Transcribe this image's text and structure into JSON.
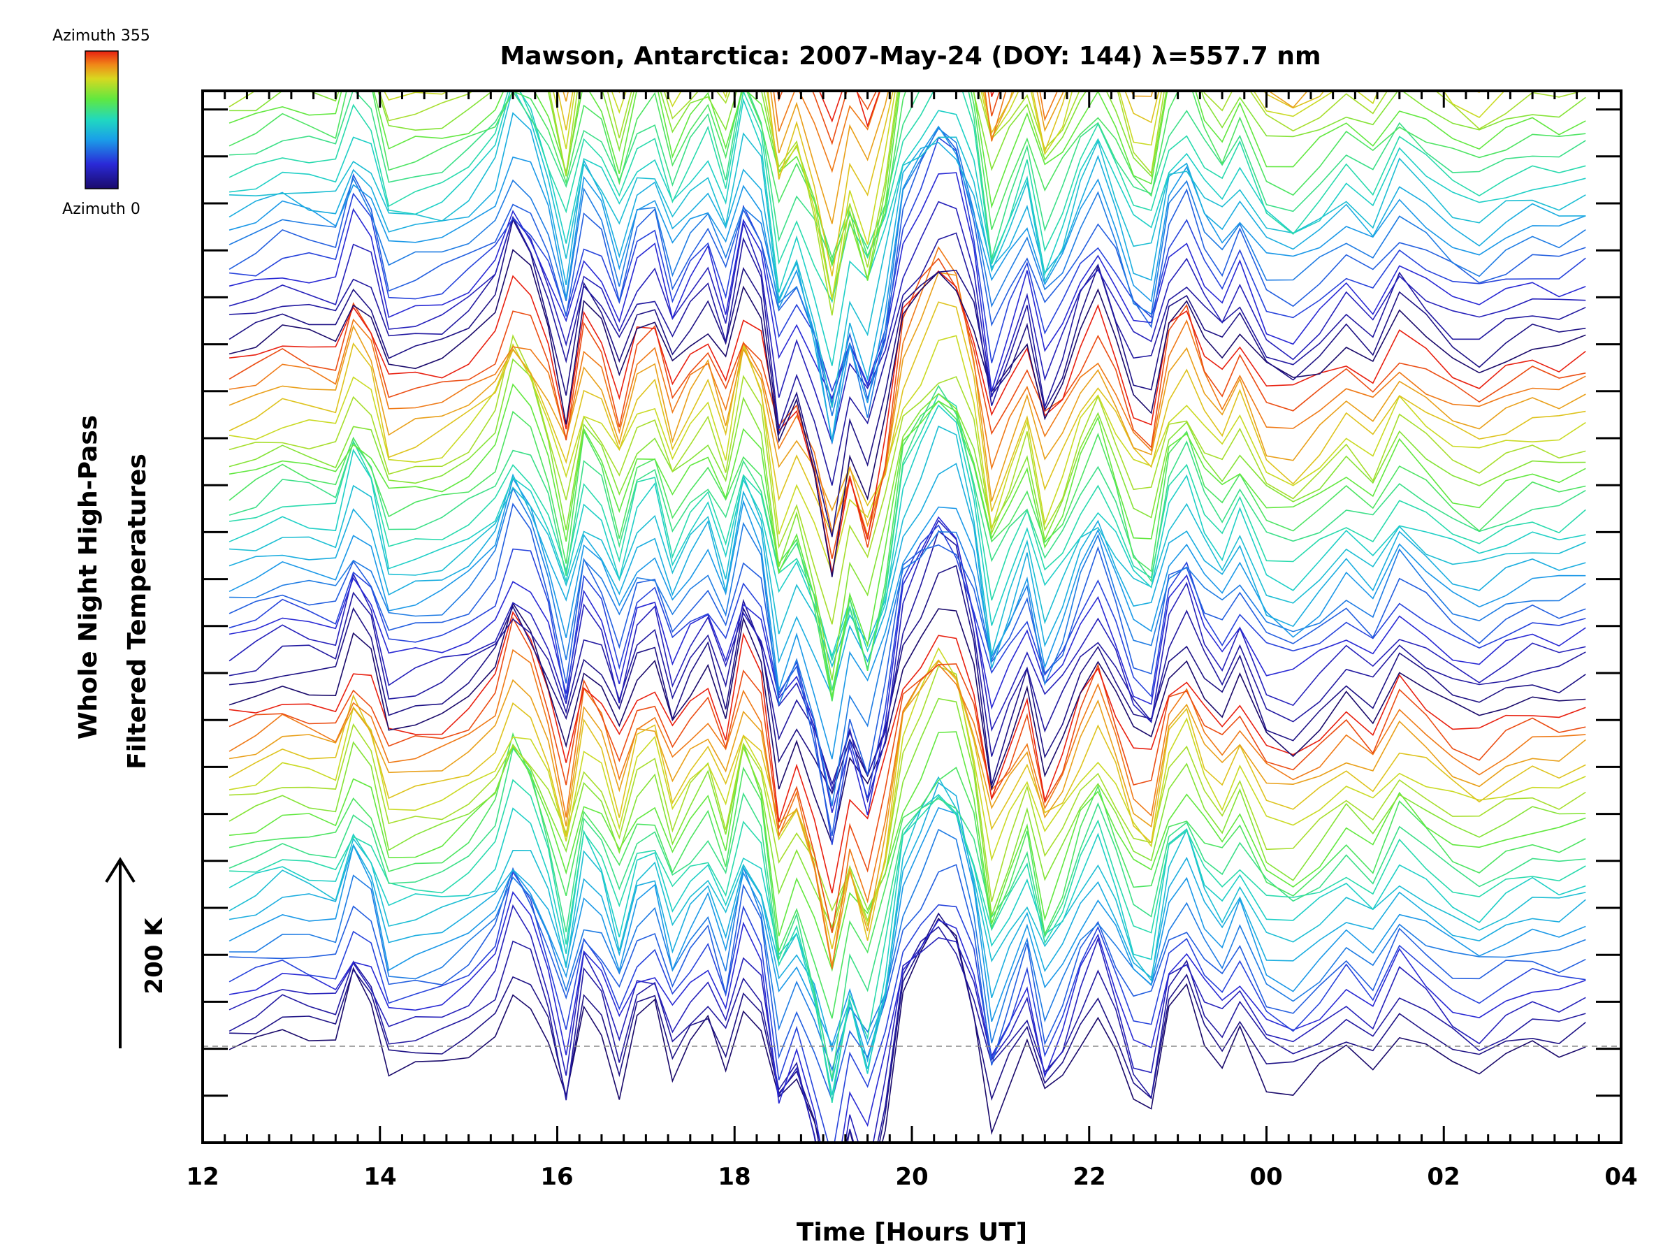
{
  "chart_data": {
    "type": "line",
    "title": "Mawson, Antarctica: 2007-May-24 (DOY: 144) λ=557.7 nm",
    "xlabel": "Time [Hours UT]",
    "ylabel_line1": "Whole Night High-Pass",
    "ylabel_line2": "Filtered Temperatures",
    "scale_label": "200 K",
    "x_range_hours_since_12UT": [
      0,
      16
    ],
    "x_ticks": [
      "12",
      "14",
      "16",
      "18",
      "20",
      "22",
      "00",
      "02",
      "04"
    ],
    "colorbar": {
      "top_label": "Azimuth  355",
      "bottom_label": "Azimuth  0",
      "range": [
        0,
        355
      ]
    },
    "series_count": 72,
    "series_offset_between_azimuths": "staggered upward, ~1/3 of 200 K per step",
    "sample_times_hours_since_12UT": [
      0.3,
      0.6,
      0.9,
      1.2,
      1.5,
      1.7,
      1.9,
      2.1,
      2.4,
      2.7,
      3.0,
      3.3,
      3.5,
      3.7,
      3.9,
      4.1,
      4.3,
      4.5,
      4.7,
      4.9,
      5.1,
      5.3,
      5.5,
      5.7,
      5.9,
      6.1,
      6.3,
      6.5,
      6.7,
      6.9,
      7.1,
      7.3,
      7.5,
      7.7,
      7.9,
      8.1,
      8.3,
      8.5,
      8.7,
      8.9,
      9.1,
      9.3,
      9.5,
      9.7,
      9.9,
      10.1,
      10.3,
      10.5,
      10.7,
      10.9,
      11.1,
      11.3,
      11.5,
      11.7,
      12.0,
      12.3,
      12.6,
      12.9,
      13.2,
      13.5,
      13.8,
      14.1,
      14.4,
      14.7,
      15.0,
      15.3,
      15.6
    ],
    "base_profile_relative_K": [
      0,
      15,
      40,
      30,
      20,
      120,
      80,
      -40,
      -30,
      -20,
      10,
      60,
      160,
      120,
      30,
      -100,
      80,
      40,
      -60,
      50,
      70,
      -40,
      20,
      60,
      -30,
      120,
      60,
      -150,
      -80,
      -180,
      -320,
      -160,
      -250,
      -120,
      80,
      140,
      200,
      180,
      60,
      -140,
      -60,
      20,
      -120,
      -60,
      30,
      90,
      10,
      -80,
      -100,
      60,
      100,
      20,
      -20,
      40,
      -60,
      -80,
      -40,
      10,
      -30,
      60,
      20,
      -20,
      -40,
      -10,
      10,
      0,
      20
    ]
  }
}
